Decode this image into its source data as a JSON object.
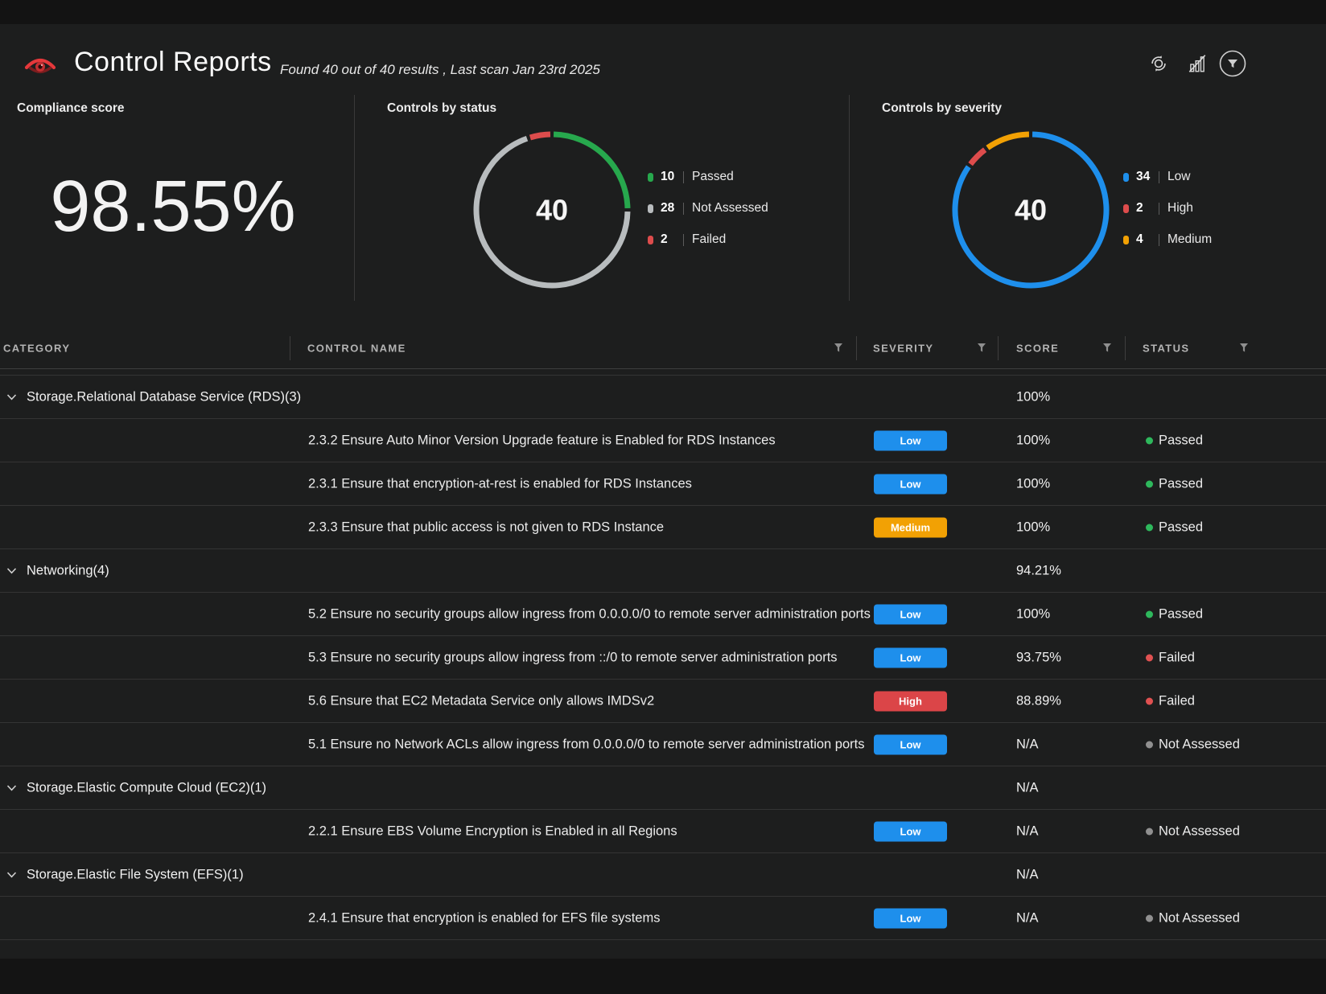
{
  "header": {
    "title": "Control Reports",
    "subtitle": "Found 40 out of 40 results , Last scan Jan 23rd 2025"
  },
  "panels": {
    "compliance": {
      "title": "Compliance score",
      "value": "98.55%"
    },
    "status": {
      "title": "Controls by status"
    },
    "severity": {
      "title": "Controls by severity"
    }
  },
  "chart_data": [
    {
      "type": "pie",
      "title": "Controls by status",
      "center_label": "40",
      "total": 40,
      "legend_position": "right",
      "segments": [
        {
          "label": "Passed",
          "value": 10,
          "color": "#27a84d"
        },
        {
          "label": "Not Assessed",
          "value": 28,
          "color": "#b8bcbe"
        },
        {
          "label": "Failed",
          "value": 2,
          "color": "#dd4c4c"
        }
      ]
    },
    {
      "type": "pie",
      "title": "Controls by severity",
      "center_label": "40",
      "total": 40,
      "legend_position": "right",
      "segments": [
        {
          "label": "Low",
          "value": 34,
          "color": "#1e8fec"
        },
        {
          "label": "High",
          "value": 2,
          "color": "#dd4c4c"
        },
        {
          "label": "Medium",
          "value": 4,
          "color": "#f2a104"
        }
      ]
    }
  ],
  "table": {
    "columns": [
      {
        "label": "CATEGORY",
        "filter": false
      },
      {
        "label": "CONTROL NAME",
        "filter": true
      },
      {
        "label": "SEVERITY",
        "filter": true
      },
      {
        "label": "SCORE",
        "filter": true
      },
      {
        "label": "STATUS",
        "filter": true
      }
    ],
    "rows": [
      {
        "type": "group",
        "label": "Storage.Relational Database Service (RDS)(3)",
        "score": "100%"
      },
      {
        "type": "control",
        "name": "2.3.2 Ensure Auto Minor Version Upgrade feature is Enabled for RDS Instances",
        "severity": "Low",
        "severity_key": "low",
        "score": "100%",
        "status": "Passed",
        "status_key": "passed"
      },
      {
        "type": "control",
        "name": "2.3.1 Ensure that encryption-at-rest is enabled for RDS Instances",
        "severity": "Low",
        "severity_key": "low",
        "score": "100%",
        "status": "Passed",
        "status_key": "passed"
      },
      {
        "type": "control",
        "name": "2.3.3 Ensure that public access is not given to RDS Instance",
        "severity": "Medium",
        "severity_key": "medium",
        "score": "100%",
        "status": "Passed",
        "status_key": "passed"
      },
      {
        "type": "group",
        "label": "Networking(4)",
        "score": "94.21%"
      },
      {
        "type": "control",
        "name": "5.2 Ensure no security groups allow ingress from 0.0.0.0/0 to remote server administration ports",
        "severity": "Low",
        "severity_key": "low",
        "score": "100%",
        "status": "Passed",
        "status_key": "passed"
      },
      {
        "type": "control",
        "name": "5.3 Ensure no security groups allow ingress from ::/0 to remote server administration ports",
        "severity": "Low",
        "severity_key": "low",
        "score": "93.75%",
        "status": "Failed",
        "status_key": "failed"
      },
      {
        "type": "control",
        "name": "5.6 Ensure that EC2 Metadata Service only allows IMDSv2",
        "severity": "High",
        "severity_key": "high",
        "score": "88.89%",
        "status": "Failed",
        "status_key": "failed"
      },
      {
        "type": "control",
        "name": "5.1 Ensure no Network ACLs allow ingress from 0.0.0.0/0 to remote server administration ports",
        "severity": "Low",
        "severity_key": "low",
        "score": "N/A",
        "status": "Not Assessed",
        "status_key": "not_assessed"
      },
      {
        "type": "group",
        "label": "Storage.Elastic Compute Cloud (EC2)(1)",
        "score": "N/A"
      },
      {
        "type": "control",
        "name": "2.2.1 Ensure EBS Volume Encryption is Enabled in all Regions",
        "severity": "Low",
        "severity_key": "low",
        "score": "N/A",
        "status": "Not Assessed",
        "status_key": "not_assessed"
      },
      {
        "type": "group",
        "label": "Storage.Elastic File System (EFS)(1)",
        "score": "N/A"
      },
      {
        "type": "control",
        "name": "2.4.1 Ensure that encryption is enabled for EFS file systems",
        "severity": "Low",
        "severity_key": "low",
        "score": "N/A",
        "status": "Not Assessed",
        "status_key": "not_assessed"
      }
    ]
  },
  "colors": {
    "low": "#1e8fec",
    "medium": "#f2a104",
    "high": "#db4548",
    "passed": "#2eb85c",
    "failed": "#e05151",
    "not_assessed": "#909090",
    "accent_red": "#e5383b"
  },
  "icons": {
    "logo": "eye-logo",
    "refresh": "refresh-icon",
    "charts_toggle": "hide-charts-icon",
    "filter": "filter-icon",
    "column_filter": "filter-funnel-icon",
    "group_chevron": "chevron-down-icon"
  }
}
